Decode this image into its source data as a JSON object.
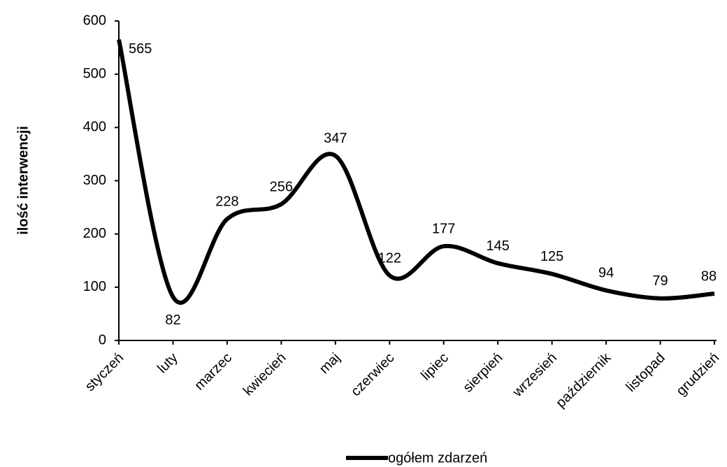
{
  "chart_data": {
    "type": "line",
    "y_label": "ilość interwencji",
    "categories": [
      "styczeń",
      "luty",
      "marzec",
      "kwiecień",
      "maj",
      "czerwiec",
      "lipiec",
      "sierpień",
      "wrzesień",
      "październik",
      "listopad",
      "grudzień"
    ],
    "series": [
      {
        "name": "ogółem zdarzeń",
        "color": "#000000",
        "values": [
          565,
          82,
          228,
          256,
          347,
          122,
          177,
          145,
          125,
          94,
          79,
          88
        ]
      }
    ],
    "ylim": [
      0,
      600
    ],
    "yticks": [
      0,
      100,
      200,
      300,
      400,
      500,
      600
    ],
    "smooth": true,
    "legend": "bottom"
  }
}
